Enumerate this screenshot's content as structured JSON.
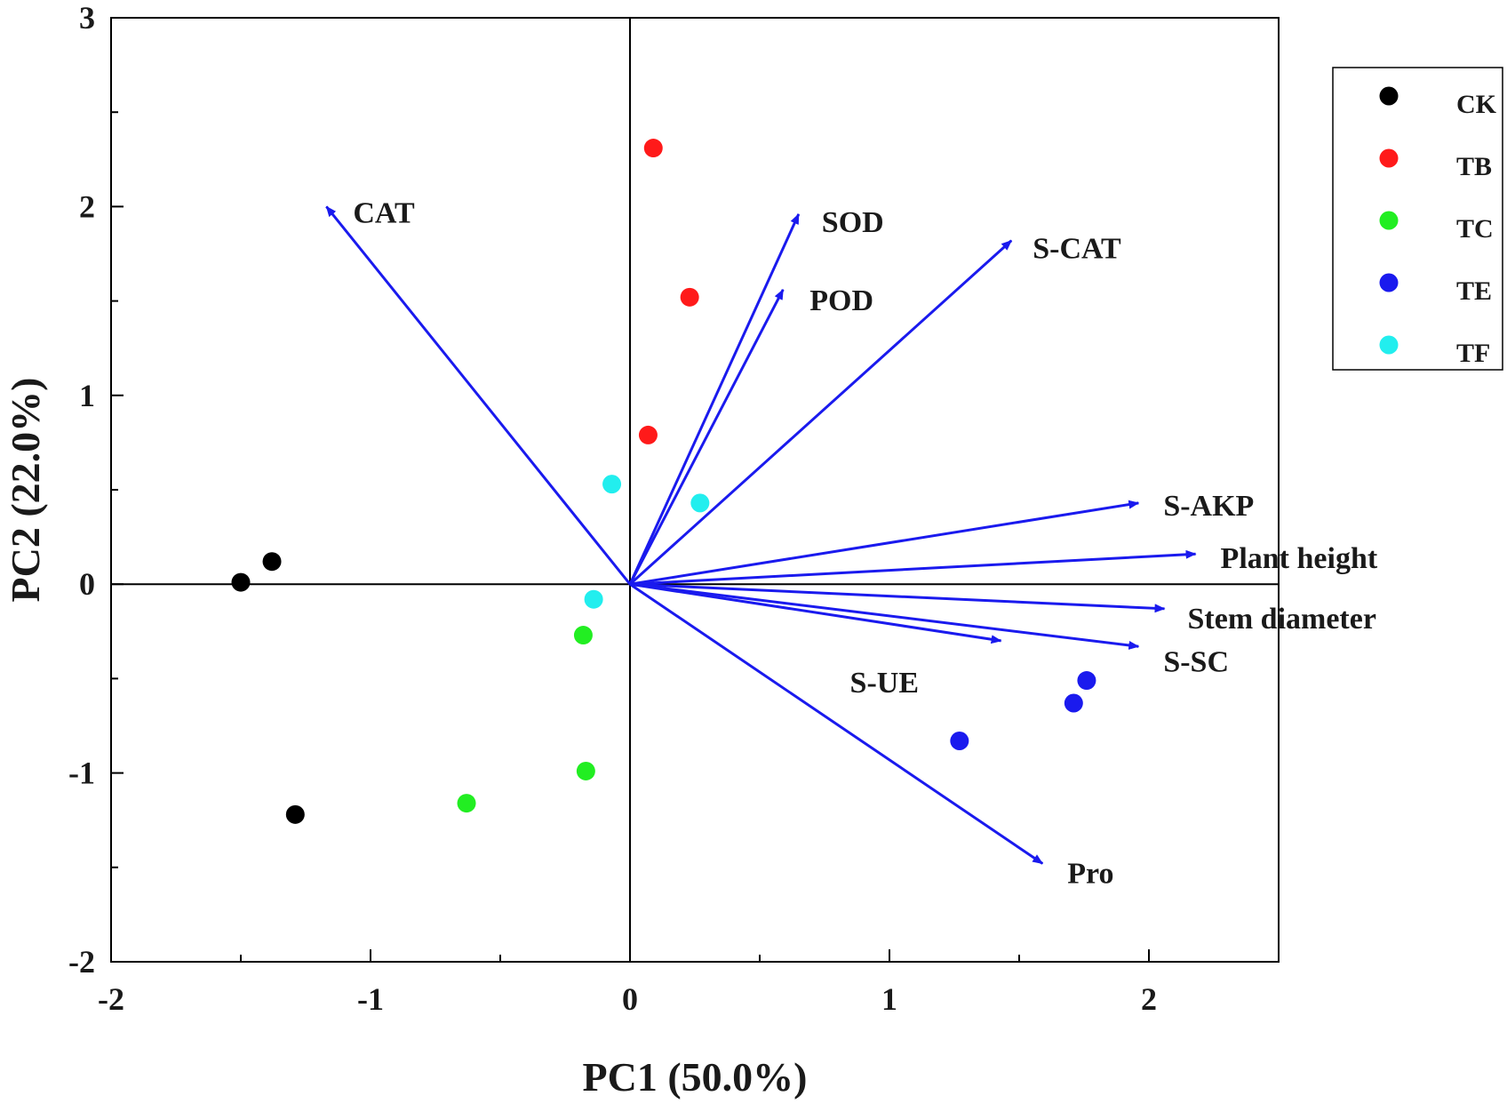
{
  "chart_data": {
    "type": "scatter",
    "subtype": "pca-biplot",
    "title": "",
    "xlabel": "PC1 (50.0%)",
    "ylabel": "PC2 (22.0%)",
    "xlim": [
      -2,
      2.5
    ],
    "ylim": [
      -2,
      3
    ],
    "xticks": [
      -2,
      -1,
      0,
      1,
      2
    ],
    "xtick_labels": [
      "-2",
      "-1",
      "0",
      "1",
      "2"
    ],
    "yticks": [
      -2,
      -1,
      0,
      1,
      2,
      3
    ],
    "ytick_labels": [
      "-2",
      "-1",
      "0",
      "1",
      "2",
      "3"
    ],
    "grid": false,
    "legend_position": "right",
    "series": [
      {
        "name": "CK",
        "color": "#000000",
        "points": [
          [
            -1.5,
            0.01
          ],
          [
            -1.38,
            0.12
          ],
          [
            -1.29,
            -1.22
          ]
        ]
      },
      {
        "name": "TB",
        "color": "#ff1a1a",
        "points": [
          [
            0.09,
            2.31
          ],
          [
            0.23,
            1.52
          ],
          [
            0.07,
            0.79
          ]
        ]
      },
      {
        "name": "TC",
        "color": "#22ee22",
        "points": [
          [
            -0.18,
            -0.27
          ],
          [
            -0.17,
            -0.99
          ],
          [
            -0.63,
            -1.16
          ]
        ]
      },
      {
        "name": "TE",
        "color": "#1a1aee",
        "points": [
          [
            1.76,
            -0.51
          ],
          [
            1.71,
            -0.63
          ],
          [
            1.27,
            -0.83
          ]
        ]
      },
      {
        "name": "TF",
        "color": "#22eeee",
        "points": [
          [
            -0.07,
            0.53
          ],
          [
            0.27,
            0.43
          ],
          [
            -0.14,
            -0.08
          ]
        ]
      }
    ],
    "loadings_color": "#1a1aee",
    "loadings": [
      {
        "name": "CAT",
        "x": -1.17,
        "y": 2.0
      },
      {
        "name": "SOD",
        "x": 0.65,
        "y": 1.96
      },
      {
        "name": "POD",
        "x": 0.59,
        "y": 1.56
      },
      {
        "name": "S-CAT",
        "x": 1.47,
        "y": 1.82
      },
      {
        "name": "S-AKP",
        "x": 1.96,
        "y": 0.43
      },
      {
        "name": "Plant height",
        "x": 2.18,
        "y": 0.16
      },
      {
        "name": "Stem diameter",
        "x": 2.06,
        "y": -0.13
      },
      {
        "name": "S-SC",
        "x": 1.96,
        "y": -0.33
      },
      {
        "name": "S-UE",
        "x": 1.43,
        "y": -0.3
      },
      {
        "name": "Pro",
        "x": 1.59,
        "y": -1.48
      }
    ]
  }
}
